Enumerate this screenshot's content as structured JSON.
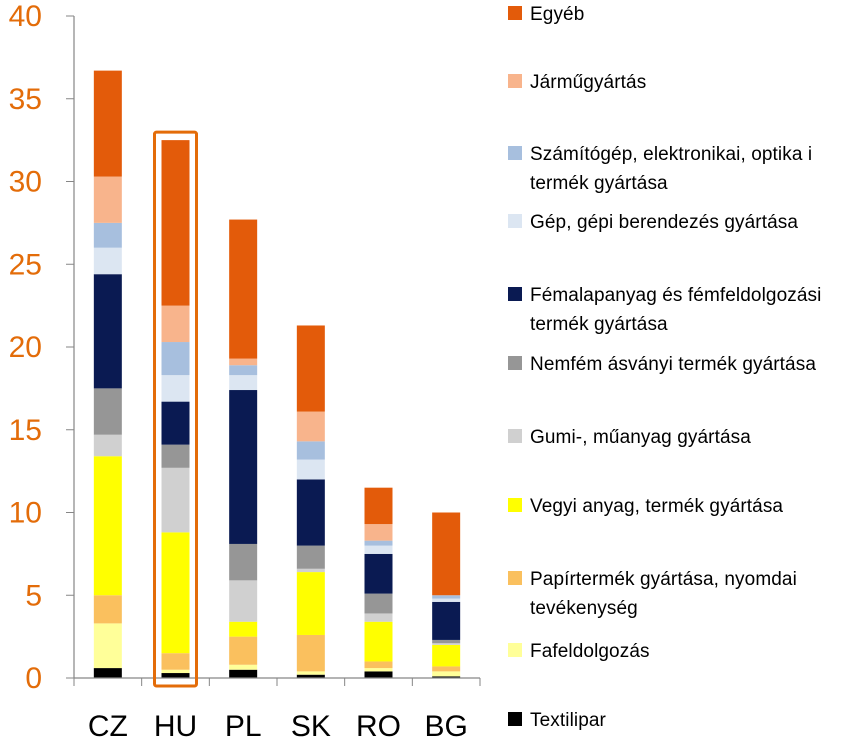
{
  "chart_data": {
    "type": "bar",
    "stacked": true,
    "categories": [
      "CZ",
      "HU",
      "PL",
      "SK",
      "RO",
      "BG"
    ],
    "highlighted_category": "HU",
    "highlight_color": "#E36C09",
    "ylim": [
      0,
      40
    ],
    "yticks": [
      0,
      5,
      10,
      15,
      20,
      25,
      30,
      35,
      40
    ],
    "ytick_color": "#E36C09",
    "legend_position": "right",
    "series": [
      {
        "name": "Textilipar",
        "color": "#000000",
        "values": [
          0.6,
          0.3,
          0.5,
          0.2,
          0.4,
          0.1
        ]
      },
      {
        "name": "Fafeldolgozás",
        "color": "#FFFF99",
        "values": [
          2.7,
          0.2,
          0.3,
          0.2,
          0.2,
          0.3
        ]
      },
      {
        "name": "Papírtermék gyártása, nyomdai tevékenység",
        "color": "#FAC05E",
        "values": [
          1.7,
          1.0,
          1.7,
          2.2,
          0.4,
          0.3
        ]
      },
      {
        "name": "Vegyi anyag, termék gyártása",
        "color": "#FFFF00",
        "values": [
          8.4,
          7.3,
          0.9,
          3.8,
          2.4,
          1.3
        ]
      },
      {
        "name": "Gumi-, műanyag gyártása",
        "color": "#D0D0D0",
        "values": [
          1.3,
          3.9,
          2.5,
          0.2,
          0.5,
          0.1
        ]
      },
      {
        "name": "Nemfém ásványi termék gyártása",
        "color": "#969696",
        "values": [
          2.8,
          1.4,
          2.2,
          1.4,
          1.2,
          0.2
        ]
      },
      {
        "name": "Fémalapanyag és fémfeldolgozási termék gyártása",
        "color": "#0A1A52",
        "values": [
          6.9,
          2.6,
          9.3,
          4.0,
          2.4,
          2.3
        ]
      },
      {
        "name": "Gép, gépi berendezés gyártása",
        "color": "#DCE6F2",
        "values": [
          1.6,
          1.6,
          0.9,
          1.2,
          0.5,
          0.2
        ]
      },
      {
        "name": "Számítógép, elektronikai, optika i termék gyártása",
        "color": "#A7BFDE",
        "values": [
          1.5,
          2.0,
          0.6,
          1.1,
          0.3,
          0.2
        ]
      },
      {
        "name": "Járműgyártás",
        "color": "#F8B48C",
        "values": [
          2.8,
          2.2,
          0.4,
          1.8,
          1.0,
          0.0
        ]
      },
      {
        "name": "Egyéb",
        "color": "#E35B0A",
        "values": [
          6.4,
          10.0,
          8.4,
          5.2,
          2.2,
          5.0
        ]
      }
    ]
  },
  "legend": [
    {
      "label": "Egyéb",
      "color": "#E35B0A"
    },
    {
      "label": "Járműgyártás",
      "color": "#F8B48C"
    },
    {
      "label": "Számítógép, elektronikai, optika i termék gyártása",
      "color": "#A7BFDE"
    },
    {
      "label": "Gép, gépi berendezés gyártása",
      "color": "#DCE6F2"
    },
    {
      "label": "Fémalapanyag és fémfeldolgozási termék gyártása",
      "color": "#0A1A52"
    },
    {
      "label": "Nemfém ásványi termék gyártása",
      "color": "#969696"
    },
    {
      "label": "Gumi-, műanyag gyártása",
      "color": "#D0D0D0"
    },
    {
      "label": "Vegyi anyag, termék gyártása",
      "color": "#FFFF00"
    },
    {
      "label": "Papírtermék gyártása, nyomdai tevékenység",
      "color": "#FAC05E"
    },
    {
      "label": "Fafeldolgozás",
      "color": "#FFFF99"
    },
    {
      "label": "Textilipar",
      "color": "#000000"
    }
  ]
}
